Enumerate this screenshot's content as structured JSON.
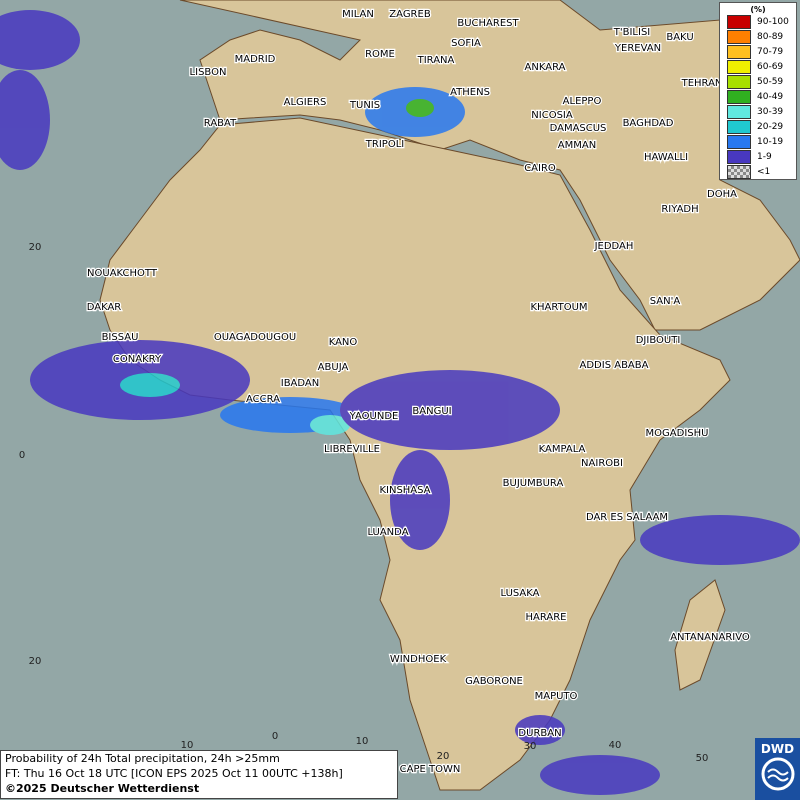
{
  "legend": {
    "unit": "(%)",
    "entries": [
      {
        "label": "90-100",
        "color": "#c80000"
      },
      {
        "label": "80-89",
        "color": "#ff7f00"
      },
      {
        "label": "70-79",
        "color": "#ffc020"
      },
      {
        "label": "60-69",
        "color": "#f0f000"
      },
      {
        "label": "50-59",
        "color": "#a8e000"
      },
      {
        "label": "40-49",
        "color": "#30b020"
      },
      {
        "label": "30-39",
        "color": "#60e8e0"
      },
      {
        "label": "20-29",
        "color": "#20c8d0"
      },
      {
        "label": "10-19",
        "color": "#2878f0"
      },
      {
        "label": "1-9",
        "color": "#4838c0"
      },
      {
        "label": "<1",
        "color": "#b8b8b8"
      }
    ]
  },
  "cities": [
    "MILAN",
    "ZAGREB",
    "BUCHAREST",
    "SOFIA",
    "T'BILISI",
    "BAKU",
    "YEREVAN",
    "ROME",
    "TIRANA",
    "ANKARA",
    "MADRID",
    "LISBON",
    "TEHRAN",
    "ALGIERS",
    "TUNIS",
    "ATHENS",
    "ALEPPO",
    "NICOSIA",
    "BAGHDAD",
    "RABAT",
    "DAMASCUS",
    "AMMAN",
    "HAWALLI",
    "DOHA",
    "TRIPOLI",
    "CAIRO",
    "RIYADH",
    "JEDDAH",
    "NOUAKCHOTT",
    "DAKAR",
    "KHARTOUM",
    "SAN'A",
    "BISSAU",
    "DJIBOUTI",
    "OUAGADOUGOU",
    "KANO",
    "CONAKRY",
    "ADDIS ABABA",
    "ABUJA",
    "IBADAN",
    "ACCRA",
    "YAOUNDE",
    "BANGUI",
    "MOGADISHU",
    "LIBREVILLE",
    "KAMPALA",
    "NAIROBI",
    "KINSHASA",
    "BUJUMBURA",
    "DAR ES SALAAM",
    "LUANDA",
    "LUSAKA",
    "HARARE",
    "ANTANANARIVO",
    "WINDHOEK",
    "GABORONE",
    "MAPUTO",
    "DURBAN",
    "CAPE TOWN"
  ],
  "grid_labels": [
    "20",
    "0",
    "20",
    "10",
    "0",
    "10",
    "20",
    "30",
    "40",
    "50"
  ],
  "caption": {
    "line1": "Probability of 24h Total precipitation, 24h >25mm",
    "line2": "FT: Thu 16 Oct 18 UTC [ICON EPS 2025 Oct 11 00UTC +138h]",
    "copyright": "©2025 Deutscher Wetterdienst"
  },
  "logo": "DWD"
}
